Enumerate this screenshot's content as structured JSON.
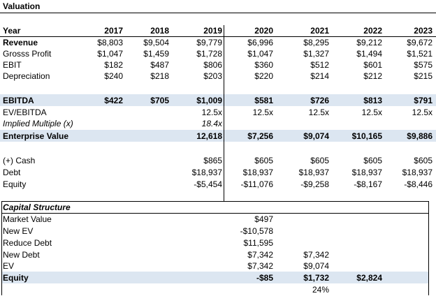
{
  "sheet_title": "Valuation",
  "years": [
    "2017",
    "2018",
    "2019",
    "2020",
    "2021",
    "2022",
    "2023"
  ],
  "rows": {
    "year_label": "Year",
    "revenue": {
      "label": "Revenue",
      "values": [
        "$8,803",
        "$9,504",
        "$9,779",
        "$6,996",
        "$8,295",
        "$9,212",
        "$9,672"
      ]
    },
    "gross_profit": {
      "label": "Grosss Profit",
      "values": [
        "$1,047",
        "$1,459",
        "$1,728",
        "$1,047",
        "$1,327",
        "$1,494",
        "$1,521"
      ]
    },
    "ebit": {
      "label": "EBIT",
      "values": [
        "$182",
        "$487",
        "$806",
        "$360",
        "$512",
        "$601",
        "$575"
      ]
    },
    "depreciation": {
      "label": "Depreciation",
      "values": [
        "$240",
        "$218",
        "$203",
        "$220",
        "$214",
        "$212",
        "$215"
      ]
    },
    "ebitda": {
      "label": "EBITDA",
      "values": [
        "$422",
        "$705",
        "$1,009",
        "$581",
        "$726",
        "$813",
        "$791"
      ]
    },
    "ev_ebitda": {
      "label": "EV/EBITDA",
      "values": [
        "",
        "",
        "12.5x",
        "12.5x",
        "12.5x",
        "12.5x",
        "12.5x"
      ]
    },
    "implied_multiple": {
      "label": "Implied Multiple (x)",
      "values": [
        "",
        "",
        "18.4x",
        "",
        "",
        "",
        ""
      ]
    },
    "enterprise_value": {
      "label": "Enterprise Value",
      "values": [
        "",
        "",
        "12,618",
        "$7,256",
        "$9,074",
        "$10,165",
        "$9,886"
      ]
    },
    "cash": {
      "label": "(+) Cash",
      "values": [
        "",
        "",
        "$865",
        "$605",
        "$605",
        "$605",
        "$605"
      ]
    },
    "debt": {
      "label": "Debt",
      "values": [
        "",
        "",
        "$18,937",
        "$18,937",
        "$18,937",
        "$18,937",
        "$18,937"
      ]
    },
    "equity": {
      "label": "Equity",
      "values": [
        "",
        "",
        "-$5,454",
        "-$11,076",
        "-$9,258",
        "-$8,167",
        "-$8,446"
      ]
    }
  },
  "capital_structure": {
    "title": "Capital Structure",
    "market_value": {
      "label": "Market Value",
      "c2020": "$497",
      "c2021": "",
      "c2022": ""
    },
    "new_ev": {
      "label": "New EV",
      "c2020": "-$10,578",
      "c2021": "",
      "c2022": ""
    },
    "reduce_debt": {
      "label": "Reduce Debt",
      "c2020": "$11,595",
      "c2021": "",
      "c2022": ""
    },
    "new_debt": {
      "label": "New Debt",
      "c2020": "$7,342",
      "c2021": "$7,342",
      "c2022": ""
    },
    "ev": {
      "label": "EV",
      "c2020": "$7,342",
      "c2021": "$9,074",
      "c2022": ""
    },
    "equity": {
      "label": "Equity",
      "c2020": "-$85",
      "c2021": "$1,732",
      "c2022": "$2,824"
    },
    "pct": {
      "label": "",
      "c2020": "",
      "c2021": "24%",
      "c2022": ""
    }
  },
  "colors": {
    "band": "#dce6f1"
  }
}
